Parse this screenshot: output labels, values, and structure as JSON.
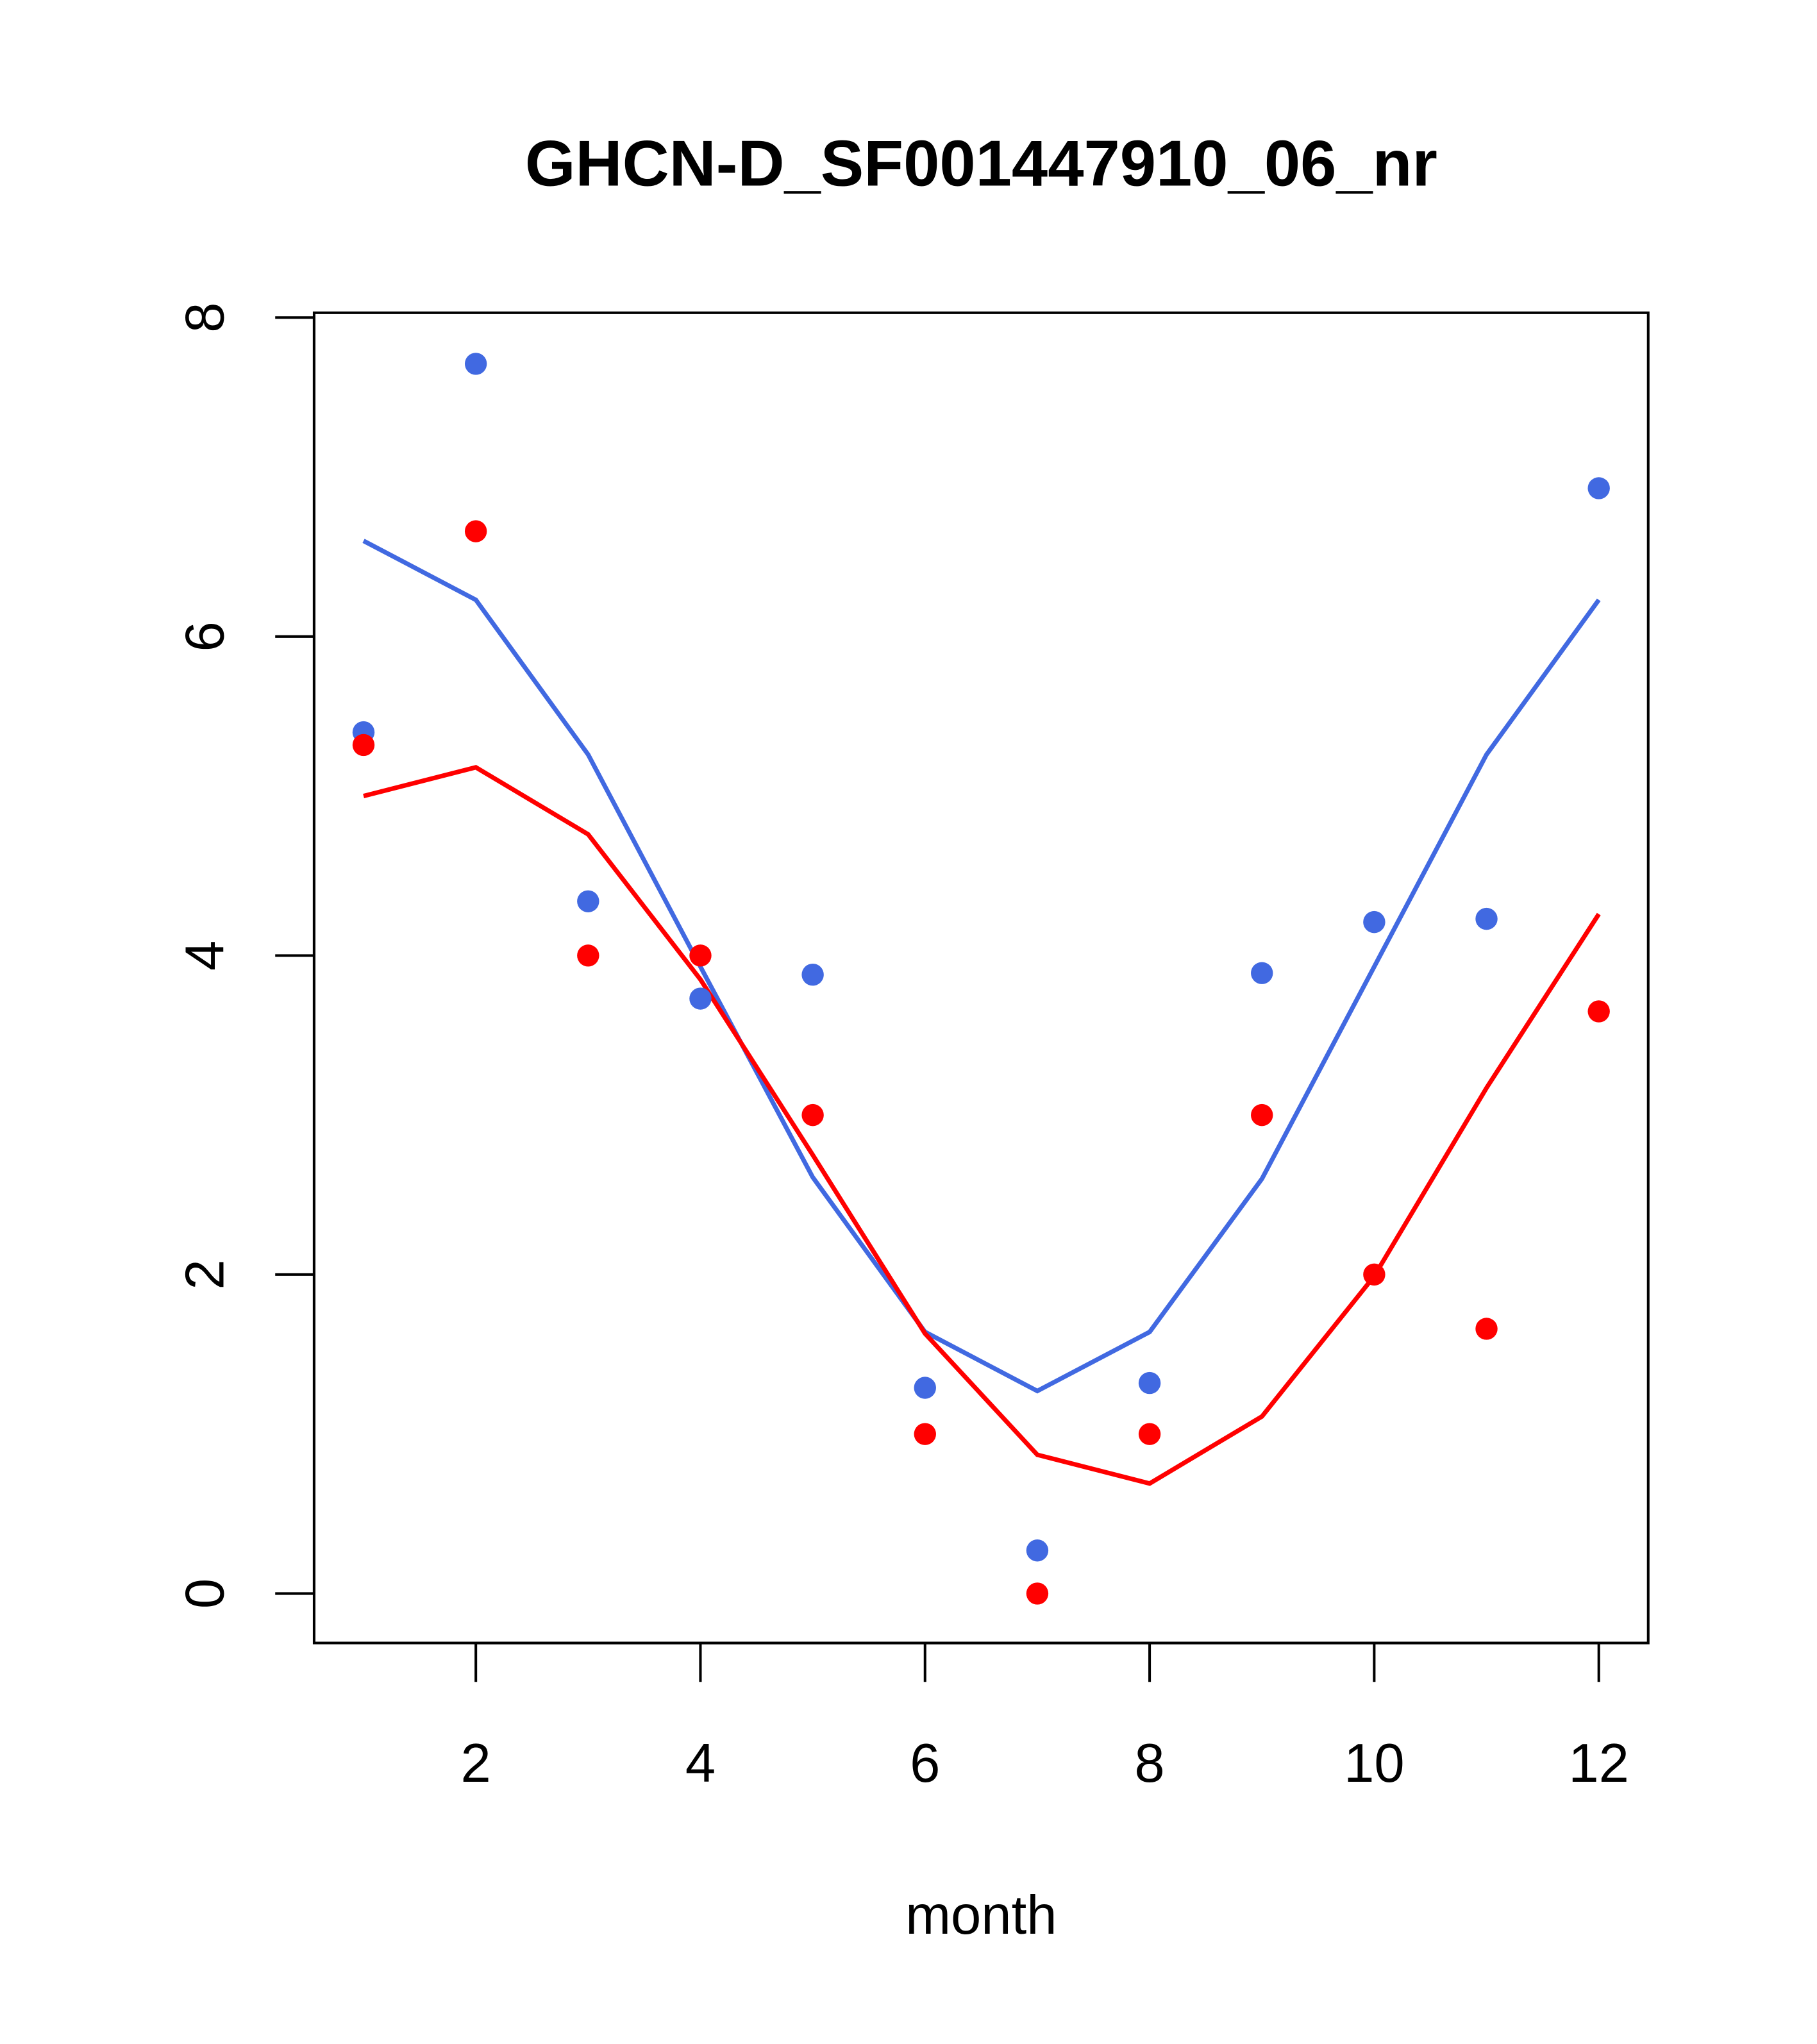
{
  "chart_data": {
    "type": "scatter",
    "title": "GHCN-D_SF001447910_06_nr",
    "xlabel": "month",
    "ylabel": "",
    "xlim": [
      0.56,
      12.44
    ],
    "ylim": [
      -0.31,
      8.03
    ],
    "xticks": [
      2,
      4,
      6,
      8,
      10,
      12
    ],
    "yticks": [
      0,
      2,
      4,
      6,
      8
    ],
    "x": [
      1,
      2,
      3,
      4,
      5,
      6,
      7,
      8,
      9,
      10,
      11,
      12
    ],
    "series": [
      {
        "name": "blue points",
        "kind": "points",
        "color": "#4169E1",
        "values": [
          5.4,
          7.71,
          4.34,
          3.73,
          3.88,
          1.29,
          0.27,
          1.32,
          3.89,
          4.21,
          4.23,
          6.93
        ]
      },
      {
        "name": "red points",
        "kind": "points",
        "color": "#FF0000",
        "values": [
          5.32,
          6.66,
          4.0,
          4.0,
          3.0,
          1.0,
          0.0,
          1.0,
          3.0,
          2.0,
          1.66,
          3.65
        ]
      },
      {
        "name": "blue line",
        "kind": "line",
        "color": "#4169E1",
        "values": [
          6.6,
          6.23,
          5.26,
          3.93,
          2.61,
          1.64,
          1.27,
          1.64,
          2.6,
          3.93,
          5.26,
          6.23
        ]
      },
      {
        "name": "red line",
        "kind": "line",
        "color": "#FF0000",
        "values": [
          5.0,
          5.18,
          4.76,
          3.85,
          2.75,
          1.63,
          0.87,
          0.69,
          1.11,
          1.99,
          3.17,
          4.26
        ]
      }
    ]
  }
}
